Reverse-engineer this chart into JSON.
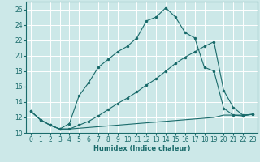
{
  "background_color": "#cce8e8",
  "plot_bg_color": "#cce8e8",
  "grid_color": "#ffffff",
  "line_color": "#1a6b6b",
  "xlabel": "Humidex (Indice chaleur)",
  "xlim": [
    -0.5,
    23.5
  ],
  "ylim": [
    10,
    27
  ],
  "yticks": [
    10,
    12,
    14,
    16,
    18,
    20,
    22,
    24,
    26
  ],
  "xticks": [
    0,
    1,
    2,
    3,
    4,
    5,
    6,
    7,
    8,
    9,
    10,
    11,
    12,
    13,
    14,
    15,
    16,
    17,
    18,
    19,
    20,
    21,
    22,
    23
  ],
  "series": [
    {
      "x": [
        0,
        1,
        2,
        3,
        4,
        5,
        6,
        7,
        8,
        9,
        10,
        11,
        12,
        13,
        14,
        15,
        16,
        17,
        18,
        19,
        20,
        21,
        22,
        23
      ],
      "y": [
        12.8,
        11.7,
        11.0,
        10.5,
        10.5,
        10.6,
        10.7,
        10.8,
        10.9,
        11.0,
        11.1,
        11.2,
        11.3,
        11.4,
        11.5,
        11.6,
        11.7,
        11.8,
        11.9,
        12.0,
        12.3,
        12.3,
        12.3,
        12.4
      ],
      "marker": false
    },
    {
      "x": [
        0,
        1,
        2,
        3,
        4,
        5,
        6,
        7,
        8,
        9,
        10,
        11,
        12,
        13,
        14,
        15,
        16,
        17,
        18,
        19,
        20,
        21,
        22,
        23
      ],
      "y": [
        12.8,
        11.7,
        11.0,
        10.5,
        10.5,
        11.0,
        11.5,
        12.2,
        13.0,
        13.8,
        14.5,
        15.3,
        16.2,
        17.0,
        18.0,
        19.0,
        19.8,
        20.5,
        21.2,
        21.8,
        15.5,
        13.3,
        12.3,
        12.4
      ],
      "marker": true
    },
    {
      "x": [
        0,
        1,
        2,
        3,
        4,
        5,
        6,
        7,
        8,
        9,
        10,
        11,
        12,
        13,
        14,
        15,
        16,
        17,
        18,
        19,
        20,
        21,
        22,
        23
      ],
      "y": [
        12.8,
        11.7,
        11.0,
        10.5,
        11.2,
        14.8,
        16.5,
        18.5,
        19.5,
        20.5,
        21.2,
        22.3,
        24.5,
        25.0,
        26.2,
        25.0,
        23.0,
        22.3,
        18.5,
        18.0,
        13.2,
        12.3,
        12.2,
        12.4
      ],
      "marker": true
    }
  ]
}
